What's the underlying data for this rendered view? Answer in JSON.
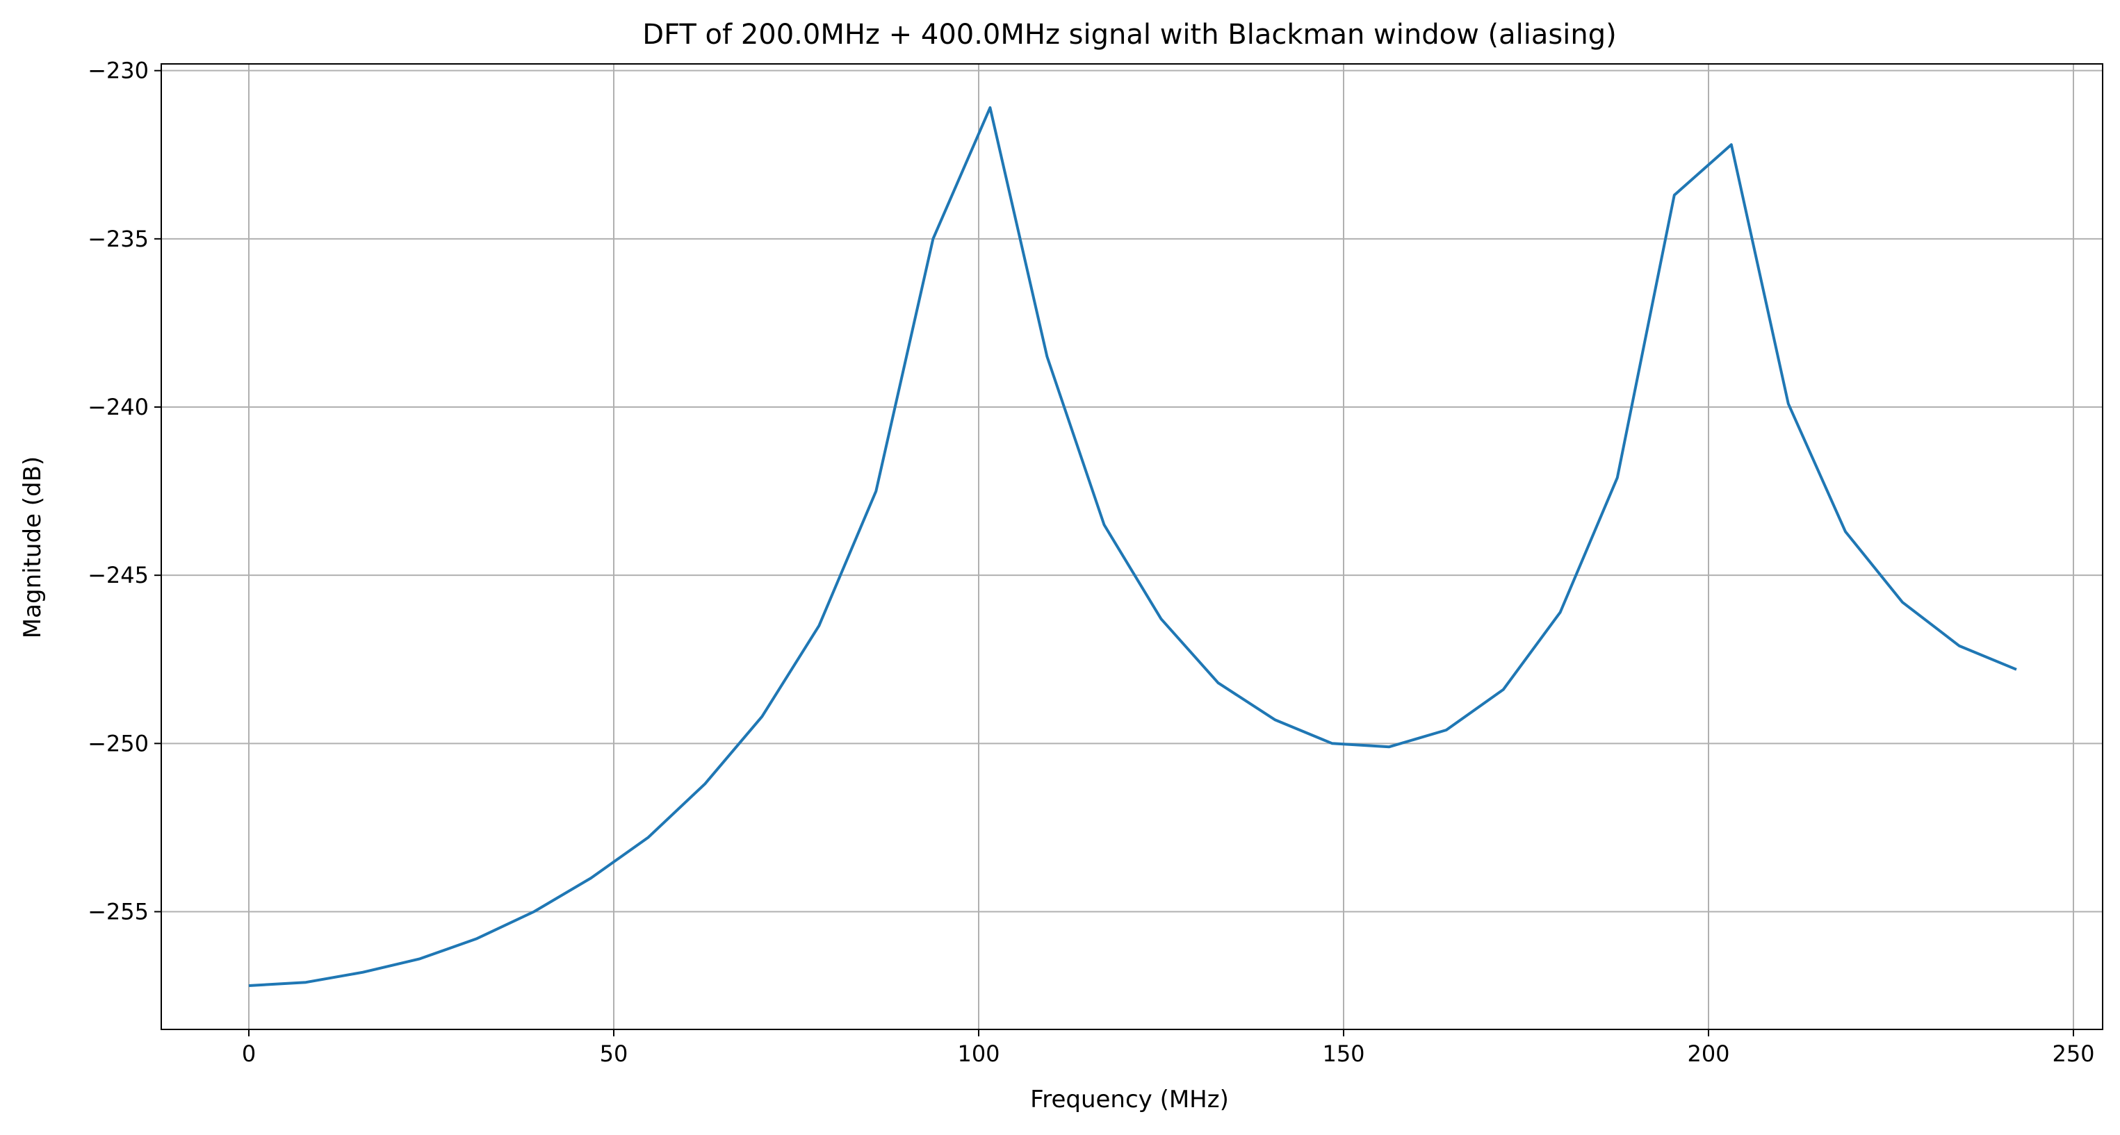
{
  "chart_data": {
    "type": "line",
    "title": "DFT of 200.0MHz + 400.0MHz signal with Blackman window (aliasing)",
    "xlabel": "Frequency (MHz)",
    "ylabel": "Magnitude (dB)",
    "xlim": [
      -12,
      254
    ],
    "ylim": [
      -258.5,
      -229.8
    ],
    "grid": true,
    "xticks": [
      0,
      50,
      100,
      150,
      200,
      250
    ],
    "xtick_labels": [
      "0",
      "50",
      "100",
      "150",
      "200",
      "250"
    ],
    "yticks": [
      -230,
      -235,
      -240,
      -245,
      -250,
      -255
    ],
    "ytick_labels": [
      "−230",
      "−235",
      "−240",
      "−245",
      "−250",
      "−255"
    ],
    "series": [
      {
        "color": "#1f77b4",
        "x": [
          0,
          7.8125,
          15.625,
          23.4375,
          31.25,
          39.0625,
          46.875,
          54.6875,
          62.5,
          70.3125,
          78.125,
          85.9375,
          93.75,
          101.5625,
          109.375,
          117.1875,
          125,
          132.8125,
          140.625,
          148.4375,
          156.25,
          164.0625,
          171.875,
          179.6875,
          187.5,
          195.3125,
          203.125,
          210.9375,
          218.75,
          226.5625,
          234.375,
          242.1875
        ],
        "y": [
          -257.2,
          -257.1,
          -256.8,
          -256.4,
          -255.8,
          -255.0,
          -254.0,
          -252.8,
          -251.2,
          -249.2,
          -246.5,
          -242.5,
          -235.0,
          -231.1,
          -238.5,
          -243.5,
          -246.3,
          -248.2,
          -249.3,
          -250.0,
          -250.1,
          -249.6,
          -248.4,
          -246.1,
          -242.1,
          -233.7,
          -232.2,
          -239.9,
          -243.7,
          -245.8,
          -247.1,
          -247.8
        ]
      }
    ]
  }
}
